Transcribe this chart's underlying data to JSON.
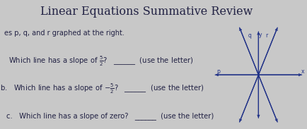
{
  "title": "Linear Equations Summative Review",
  "subtitle": "es p, q, and r graphed at the right.",
  "bg_color": "#c8c8c8",
  "title_bg": "#e0e0e0",
  "text_color": "#222244",
  "title_fontsize": 11.5,
  "subtitle_fontsize": 7.0,
  "body_fontsize": 7.2,
  "graph": {
    "xlim": [
      -3.5,
      3.5
    ],
    "ylim": [
      -3.5,
      3.5
    ],
    "line_color": "#223388",
    "axis_color": "#223388",
    "label_color": "#223388",
    "q_slope": 2.5,
    "r_slope": -2.5,
    "p_slope": 0.0
  }
}
